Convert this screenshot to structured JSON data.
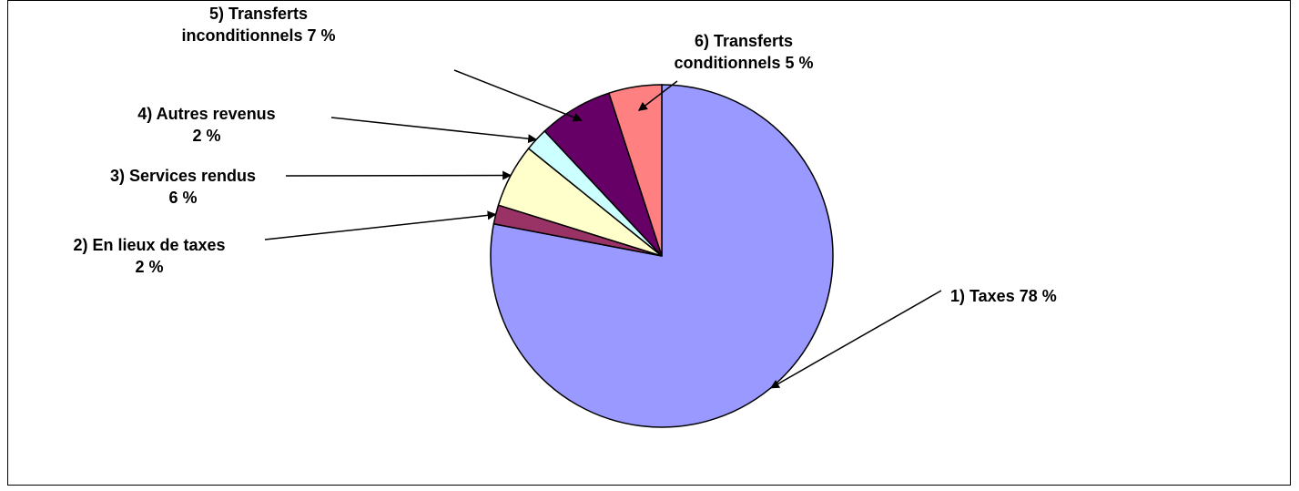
{
  "chart_data": {
    "type": "pie",
    "slices": [
      {
        "label": "1)  Taxes 78 %",
        "lines": [
          "1)  Taxes 78 %"
        ],
        "value": 78,
        "color": "#9999ff"
      },
      {
        "label": "2) En lieux de taxes 2 %",
        "lines": [
          "2) En lieux de taxes",
          "2 %"
        ],
        "value": 1.8,
        "color": "#993366"
      },
      {
        "label": "3) Services rendus 6 %",
        "lines": [
          "3) Services rendus",
          "6 %"
        ],
        "value": 6,
        "color": "#ffffcc"
      },
      {
        "label": "4) Autres revenus 2 %",
        "lines": [
          "4) Autres revenus",
          "2 %"
        ],
        "value": 2.2,
        "color": "#ccffff"
      },
      {
        "label": "5) Transferts inconditionnels 7 %",
        "lines": [
          "5) Transferts",
          "inconditionnels 7 %"
        ],
        "value": 7,
        "color": "#660066"
      },
      {
        "label": "6) Transferts conditionnels 5 %",
        "lines": [
          "6) Transferts",
          "conditionnels 5 %"
        ],
        "value": 5,
        "color": "#ff8080"
      }
    ],
    "start_angle_deg": 0,
    "direction": "clockwise",
    "legend": "none",
    "border": true
  }
}
